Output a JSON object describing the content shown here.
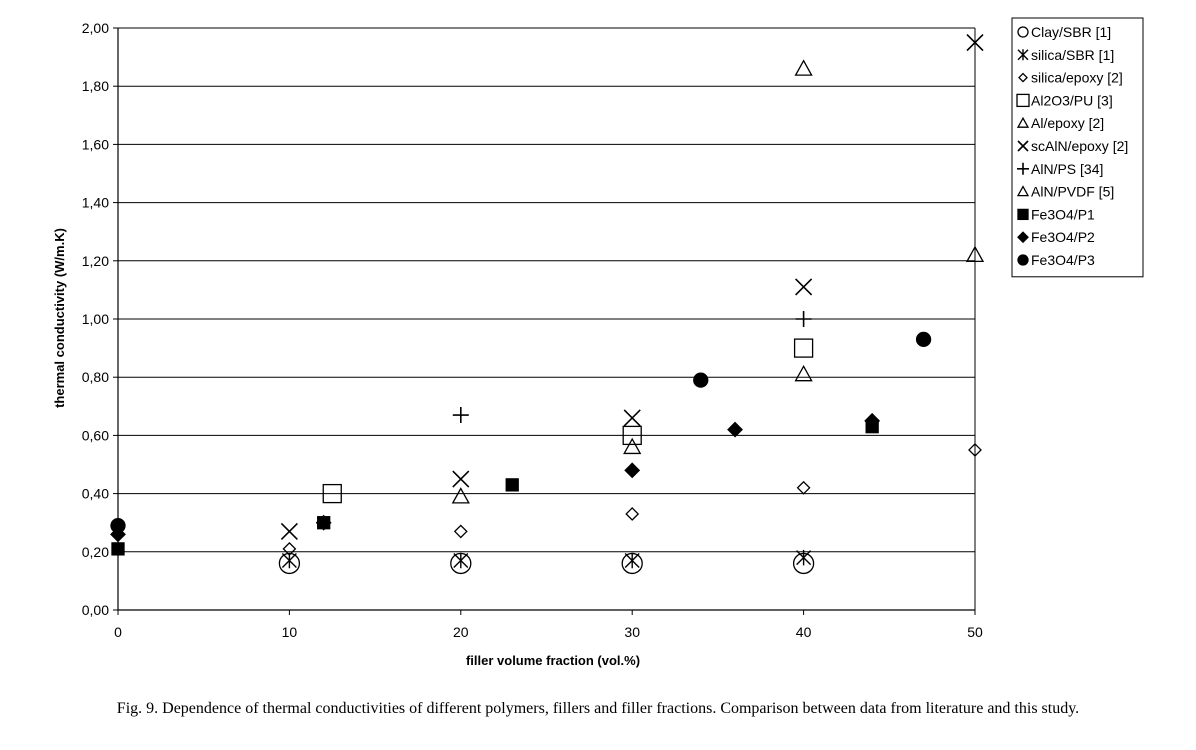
{
  "caption": "Fig. 9. Dependence of thermal conductivities of different polymers, fillers and filler fractions. Comparison between data from literature and this study.",
  "chart_data": {
    "type": "scatter",
    "xlabel": "filler volume fraction  (vol.%)",
    "ylabel": "thermal conductivity (W/m.K)",
    "xlim": [
      0,
      50
    ],
    "ylim": [
      0,
      2.0
    ],
    "x_ticks": [
      "0",
      "10",
      "20",
      "30",
      "40",
      "50"
    ],
    "y_ticks": [
      "0,00",
      "0,20",
      "0,40",
      "0,60",
      "0,80",
      "1,00",
      "1,20",
      "1,40",
      "1,60",
      "1,80",
      "2,00"
    ],
    "grid": "horizontal",
    "legend_position": "right",
    "series": [
      {
        "name": "Clay/SBR [1]",
        "marker": "circle-open",
        "points": [
          [
            10,
            0.16
          ],
          [
            20,
            0.16
          ],
          [
            30,
            0.16
          ],
          [
            40,
            0.16
          ]
        ]
      },
      {
        "name": "silica/SBR [1]",
        "marker": "asterisk",
        "points": [
          [
            10,
            0.17
          ],
          [
            20,
            0.17
          ],
          [
            30,
            0.17
          ],
          [
            40,
            0.18
          ]
        ]
      },
      {
        "name": "silica/epoxy [2]",
        "marker": "diamond-open",
        "points": [
          [
            10,
            0.21
          ],
          [
            20,
            0.27
          ],
          [
            30,
            0.33
          ],
          [
            40,
            0.42
          ],
          [
            50,
            0.55
          ]
        ]
      },
      {
        "name": "Al2O3/PU [3]",
        "marker": "square-open",
        "points": [
          [
            12.5,
            0.4
          ],
          [
            30,
            0.6
          ],
          [
            40,
            0.9
          ]
        ]
      },
      {
        "name": "Al/epoxy [2]",
        "marker": "triangle-open",
        "points": [
          [
            20,
            0.39
          ],
          [
            30,
            0.56
          ],
          [
            40,
            1.86
          ]
        ]
      },
      {
        "name": "scAlN/epoxy [2]",
        "marker": "x",
        "points": [
          [
            10,
            0.27
          ],
          [
            20,
            0.45
          ],
          [
            30,
            0.66
          ],
          [
            40,
            1.11
          ],
          [
            50,
            1.95
          ]
        ]
      },
      {
        "name": "AlN/PS [34]",
        "marker": "plus",
        "points": [
          [
            20,
            0.67
          ],
          [
            40,
            1.0
          ]
        ]
      },
      {
        "name": "AlN/PVDF [5]",
        "marker": "triangle-open",
        "points": [
          [
            40,
            0.81
          ],
          [
            50,
            1.22
          ]
        ]
      },
      {
        "name": "Fe3O4/P1",
        "marker": "square-filled",
        "points": [
          [
            0,
            0.21
          ],
          [
            12,
            0.3
          ],
          [
            23,
            0.43
          ],
          [
            44,
            0.63
          ]
        ]
      },
      {
        "name": "Fe3O4/P2",
        "marker": "diamond-filled",
        "points": [
          [
            0,
            0.26
          ],
          [
            12,
            0.3
          ],
          [
            30,
            0.48
          ],
          [
            36,
            0.62
          ],
          [
            44,
            0.65
          ]
        ]
      },
      {
        "name": "Fe3O4/P3",
        "marker": "circle-filled",
        "points": [
          [
            0,
            0.29
          ],
          [
            34,
            0.79
          ],
          [
            47,
            0.93
          ]
        ]
      }
    ]
  }
}
